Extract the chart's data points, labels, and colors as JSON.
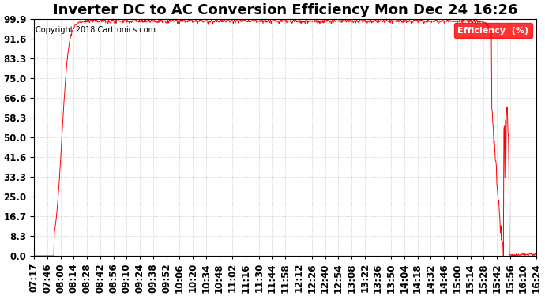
{
  "title": "Inverter DC to AC Conversion Efficiency Mon Dec 24 16:26",
  "copyright": "Copyright 2018 Cartronics.com",
  "legend_label": "Efficiency  (%)",
  "yticks": [
    0.0,
    8.3,
    16.7,
    25.0,
    33.3,
    41.6,
    50.0,
    58.3,
    66.6,
    75.0,
    83.3,
    91.6,
    99.9
  ],
  "ymin": 0.0,
  "ymax": 99.9,
  "line_color": "#ff0000",
  "background_color": "#ffffff",
  "grid_color": "#cccccc",
  "title_fontsize": 13,
  "tick_fontsize": 8.5,
  "x_tick_labels": [
    "07:17",
    "07:46",
    "08:00",
    "08:14",
    "08:28",
    "08:42",
    "08:56",
    "09:10",
    "09:24",
    "09:38",
    "09:52",
    "10:06",
    "10:20",
    "10:34",
    "10:48",
    "11:02",
    "11:16",
    "11:30",
    "11:44",
    "11:58",
    "12:12",
    "12:26",
    "12:40",
    "12:54",
    "13:08",
    "13:22",
    "13:36",
    "13:50",
    "14:04",
    "14:18",
    "14:32",
    "14:46",
    "15:00",
    "15:14",
    "15:28",
    "15:42",
    "15:56",
    "16:10",
    "16:24"
  ]
}
